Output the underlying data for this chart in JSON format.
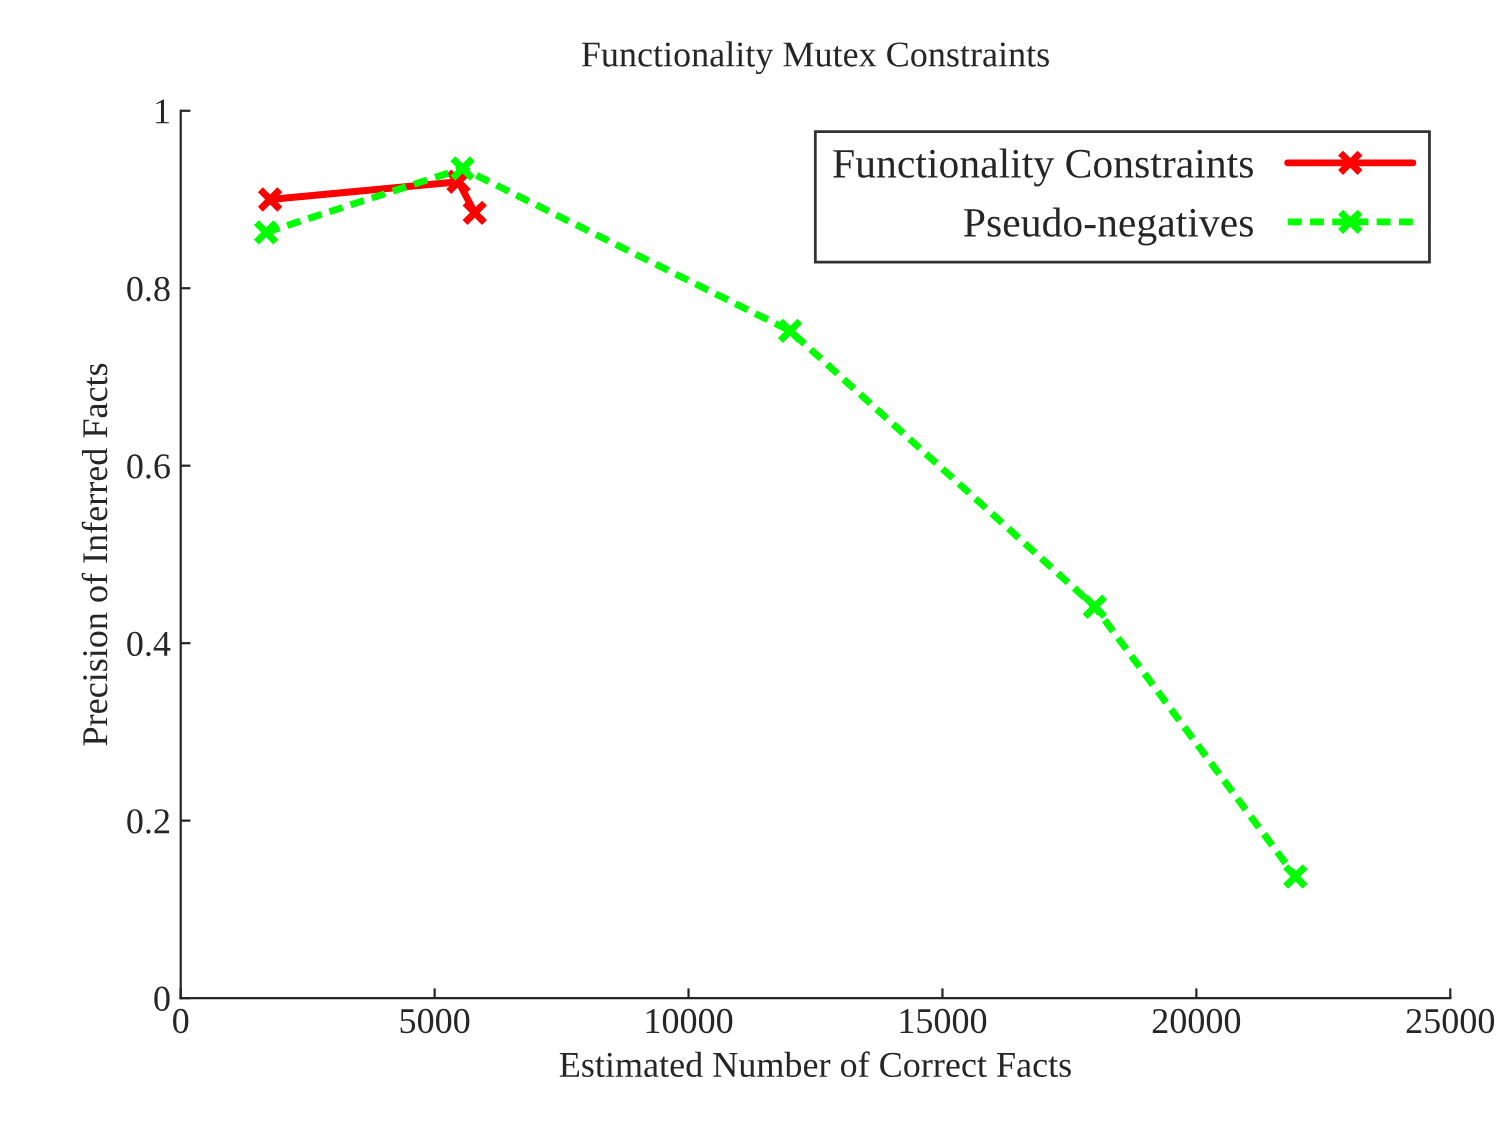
{
  "chart_data": {
    "type": "line",
    "title": "Functionality Mutex Constraints",
    "xlabel": "Estimated Number of Correct Facts",
    "ylabel": "Precision of Inferred Facts",
    "xlim": [
      0,
      25000
    ],
    "xticks": [
      0,
      5000,
      10000,
      15000,
      20000,
      25000
    ],
    "ylim": [
      0,
      1
    ],
    "yticks": [
      0,
      0.2,
      0.4,
      0.6,
      0.8,
      1
    ],
    "grid": false,
    "legend": "top right",
    "series": [
      {
        "name": "Functionality Constraints",
        "color": "#ff0000",
        "marker": "cross",
        "line_style": "solid",
        "x": [
          1760,
          5470,
          5790
        ],
        "values": [
          0.9,
          0.92,
          0.885
        ]
      },
      {
        "name": "Pseudo-negatives",
        "color": "#00ff00",
        "marker": "cross",
        "line_style": "dashed",
        "x": [
          1680,
          5550,
          12000,
          18000,
          21950
        ],
        "values": [
          0.863,
          0.935,
          0.752,
          0.441,
          0.137
        ]
      }
    ]
  }
}
